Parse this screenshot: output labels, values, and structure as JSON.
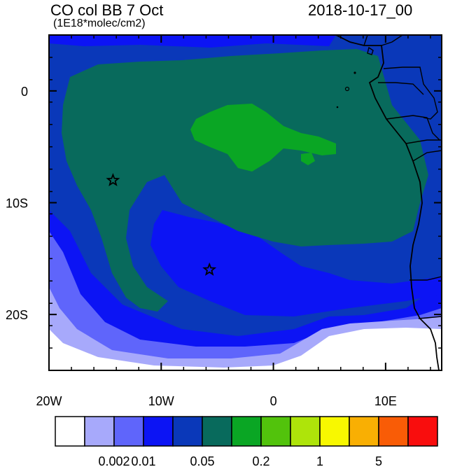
{
  "header": {
    "title": "CO col BB 7 Oct",
    "units": "(1E18*molec/cm2)",
    "datetime": "2018-10-17_00"
  },
  "map": {
    "lon_range": [
      -20,
      15
    ],
    "lat_range": [
      -25,
      5
    ],
    "x_ticks": [
      {
        "value": -20,
        "label": "20W"
      },
      {
        "value": -10,
        "label": "10W"
      },
      {
        "value": 0,
        "label": "0"
      },
      {
        "value": 10,
        "label": "10E"
      }
    ],
    "y_ticks": [
      {
        "value": 0,
        "label": "0"
      },
      {
        "value": -10,
        "label": "10S"
      },
      {
        "value": -20,
        "label": "20S"
      }
    ],
    "markers": [
      {
        "name": "star-marker-north",
        "lon": -14.3,
        "lat": -8.0
      },
      {
        "name": "star-marker-south",
        "lon": -5.7,
        "lat": -16.0
      }
    ]
  },
  "colorbar": {
    "colors": [
      "#ffffff",
      "#a7a9fb",
      "#5f65fb",
      "#0c14f4",
      "#0a38b9",
      "#086a5c",
      "#0aa624",
      "#52c30c",
      "#aee40a",
      "#f8f800",
      "#f9af03",
      "#f95c06",
      "#f90d0d"
    ],
    "labels": [
      {
        "after_box": 2,
        "text": "0.002"
      },
      {
        "after_box": 3,
        "text": "0.01"
      },
      {
        "after_box": 5,
        "text": "0.05"
      },
      {
        "after_box": 7,
        "text": "0.2"
      },
      {
        "after_box": 9,
        "text": "1"
      },
      {
        "after_box": 11,
        "text": "5"
      }
    ]
  }
}
